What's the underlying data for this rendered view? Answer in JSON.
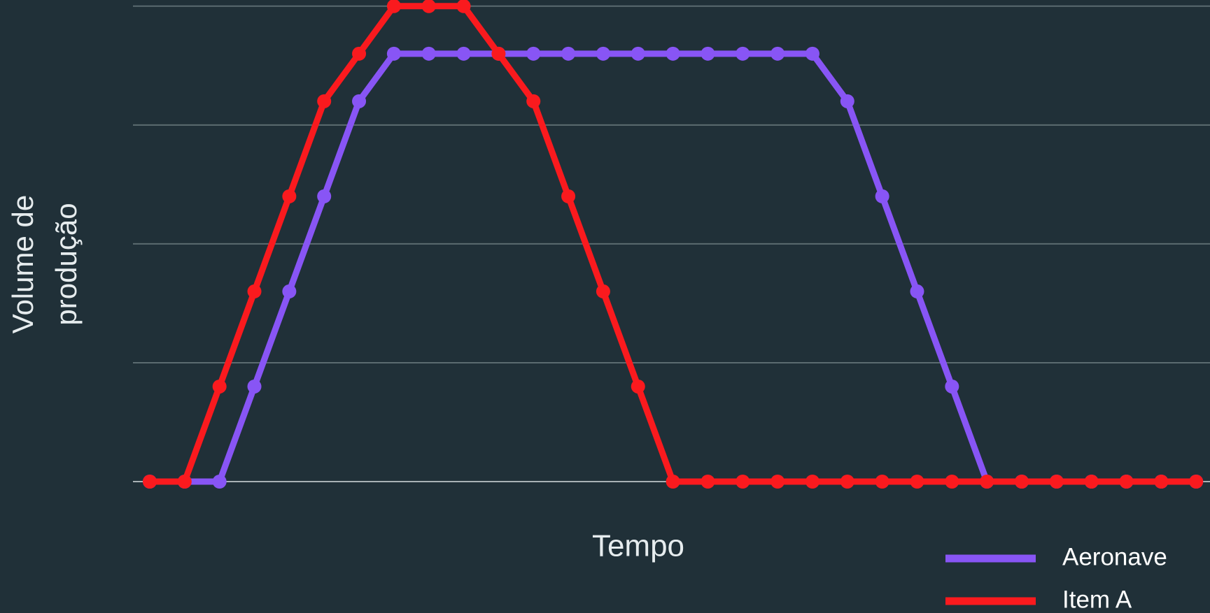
{
  "chart_data": {
    "type": "line",
    "xlabel": "Tempo",
    "ylabel": "Volume de produção",
    "categories": [
      null,
      null,
      null,
      null,
      null,
      null,
      null,
      null,
      null,
      null,
      null,
      null,
      null,
      null,
      null,
      null,
      null,
      null,
      null,
      null,
      null,
      null,
      null,
      null,
      null,
      null,
      null,
      null,
      null,
      null,
      null
    ],
    "series": [
      {
        "name": "Aeronave",
        "color": "#8855f5",
        "values": [
          0,
          0,
          0,
          0.8,
          1.6,
          2.4,
          3.2,
          3.6,
          3.6,
          3.6,
          3.6,
          3.6,
          3.6,
          3.6,
          3.6,
          3.6,
          3.6,
          3.6,
          3.6,
          3.6,
          3.2,
          2.4,
          1.6,
          0.8,
          0,
          0,
          0,
          0,
          0,
          0,
          0
        ]
      },
      {
        "name": "Item A",
        "color": "#fa1a1e",
        "values": [
          0,
          0,
          0.8,
          1.6,
          2.4,
          3.2,
          3.6,
          4,
          4,
          4,
          3.6,
          3.2,
          2.4,
          1.6,
          0.8,
          0,
          0,
          0,
          0,
          0,
          0,
          0,
          0,
          0,
          0,
          0,
          0,
          0,
          0,
          0,
          0
        ]
      }
    ],
    "ylim": [
      0,
      4
    ],
    "yticks": [
      0,
      1,
      2,
      3,
      4
    ],
    "grid": true,
    "legend": "lower right"
  }
}
